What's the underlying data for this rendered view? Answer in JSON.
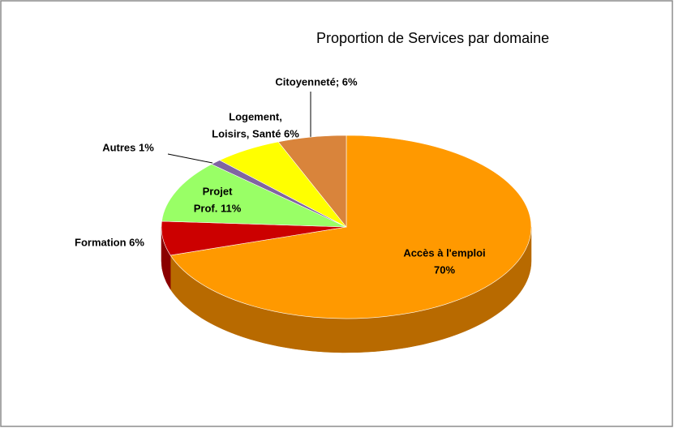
{
  "chart_data": {
    "type": "pie",
    "title": "Proportion de Services par domaine",
    "values": [
      70,
      6,
      11,
      1,
      6,
      6
    ],
    "value_labels": [
      [
        "Accès à l'emploi",
        "70%"
      ],
      [
        "Formation 6%"
      ],
      [
        "Projet",
        "Prof. 11%"
      ],
      [
        "Autres 1%"
      ],
      [
        "Logement,",
        "Loisirs, Santé 6%"
      ],
      [
        "Citoyenneté; 6%"
      ]
    ],
    "colors": [
      "#ff9900",
      "#cc0000",
      "#99ff66",
      "#8064a2",
      "#ffff00",
      "#d9843b"
    ],
    "side_colors": [
      "#b86a00",
      "#8a0000",
      "#66b040",
      "#584478",
      "#b0b000",
      "#9c5a22"
    ]
  }
}
